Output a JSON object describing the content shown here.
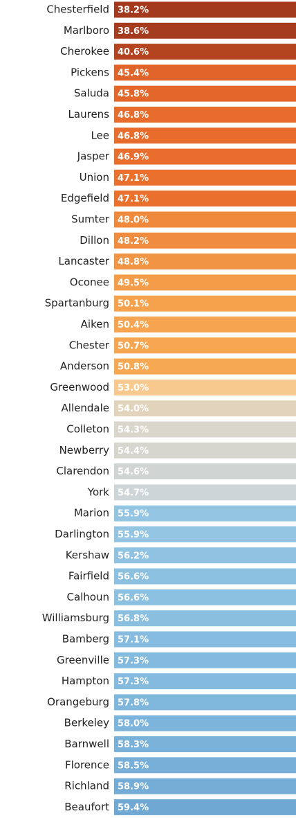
{
  "chart_data": {
    "type": "bar",
    "categories": [
      "Chesterfield",
      "Marlboro",
      "Cherokee",
      "Pickens",
      "Saluda",
      "Laurens",
      "Lee",
      "Jasper",
      "Union",
      "Edgefield",
      "Sumter",
      "Dillon",
      "Lancaster",
      "Oconee",
      "Spartanburg",
      "Aiken",
      "Chester",
      "Anderson",
      "Greenwood",
      "Allendale",
      "Colleton",
      "Newberry",
      "Clarendon",
      "York",
      "Marion",
      "Darlington",
      "Kershaw",
      "Fairfield",
      "Calhoun",
      "Williamsburg",
      "Bamberg",
      "Greenville",
      "Hampton",
      "Orangeburg",
      "Berkeley",
      "Barnwell",
      "Florence",
      "Richland",
      "Beaufort"
    ],
    "values": [
      38.2,
      38.6,
      40.6,
      45.4,
      45.8,
      46.8,
      46.8,
      46.9,
      47.1,
      47.1,
      48.0,
      48.2,
      48.8,
      49.5,
      50.1,
      50.4,
      50.7,
      50.8,
      53.0,
      54.0,
      54.3,
      54.4,
      54.6,
      54.7,
      55.9,
      55.9,
      56.2,
      56.6,
      56.6,
      56.8,
      57.1,
      57.3,
      57.3,
      57.8,
      58.0,
      58.3,
      58.5,
      58.9,
      59.4
    ],
    "value_labels": [
      "38.2%",
      "38.6%",
      "40.6%",
      "45.4%",
      "45.8%",
      "46.8%",
      "46.8%",
      "46.9%",
      "47.1%",
      "47.1%",
      "48.0%",
      "48.2%",
      "48.8%",
      "49.5%",
      "50.1%",
      "50.4%",
      "50.7%",
      "50.8%",
      "53.0%",
      "54.0%",
      "54.3%",
      "54.4%",
      "54.6%",
      "54.7%",
      "55.9%",
      "55.9%",
      "56.2%",
      "56.6%",
      "56.6%",
      "56.8%",
      "57.1%",
      "57.3%",
      "57.3%",
      "57.8%",
      "58.0%",
      "58.3%",
      "58.5%",
      "58.9%",
      "59.4%"
    ],
    "colors": [
      "#a33a1e",
      "#a53c1f",
      "#b4431f",
      "#e0632a",
      "#e3672a",
      "#e86c2b",
      "#e86c2b",
      "#e96d2c",
      "#ea702d",
      "#ea702d",
      "#ef8a3d",
      "#ef8c3f",
      "#f19443",
      "#f49c47",
      "#f6a24d",
      "#f6a44f",
      "#f6a651",
      "#f7a853",
      "#f8c98e",
      "#e2d3bc",
      "#d9d6cc",
      "#d6d6cf",
      "#d0d4d2",
      "#cdd5d6",
      "#93c5e3",
      "#93c5e3",
      "#90c3e2",
      "#8cc0e1",
      "#8cc0e1",
      "#8abfe0",
      "#86bcdf",
      "#83bade",
      "#83bade",
      "#7fb6dc",
      "#7db4db",
      "#7ab1d9",
      "#78afd8",
      "#74acd6",
      "#70a8d4"
    ]
  }
}
